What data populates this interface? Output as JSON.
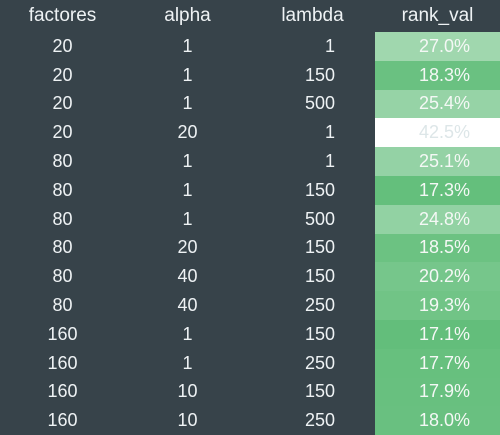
{
  "table": {
    "headers": [
      "factores",
      "alpha",
      "lambda",
      "rank_val"
    ],
    "rows": [
      {
        "factores": "20",
        "alpha": "1",
        "lambda": "1",
        "rank_val": "27.0%",
        "fraction": 0.27
      },
      {
        "factores": "20",
        "alpha": "1",
        "lambda": "150",
        "rank_val": "18.3%",
        "fraction": 0.183
      },
      {
        "factores": "20",
        "alpha": "1",
        "lambda": "500",
        "rank_val": "25.4%",
        "fraction": 0.254
      },
      {
        "factores": "20",
        "alpha": "20",
        "lambda": "1",
        "rank_val": "42.5%",
        "fraction": 0.425
      },
      {
        "factores": "80",
        "alpha": "1",
        "lambda": "1",
        "rank_val": "25.1%",
        "fraction": 0.251
      },
      {
        "factores": "80",
        "alpha": "1",
        "lambda": "150",
        "rank_val": "17.3%",
        "fraction": 0.173
      },
      {
        "factores": "80",
        "alpha": "1",
        "lambda": "500",
        "rank_val": "24.8%",
        "fraction": 0.248
      },
      {
        "factores": "80",
        "alpha": "20",
        "lambda": "150",
        "rank_val": "18.5%",
        "fraction": 0.185
      },
      {
        "factores": "80",
        "alpha": "40",
        "lambda": "150",
        "rank_val": "20.2%",
        "fraction": 0.202
      },
      {
        "factores": "80",
        "alpha": "40",
        "lambda": "250",
        "rank_val": "19.3%",
        "fraction": 0.193
      },
      {
        "factores": "160",
        "alpha": "1",
        "lambda": "150",
        "rank_val": "17.1%",
        "fraction": 0.171
      },
      {
        "factores": "160",
        "alpha": "1",
        "lambda": "250",
        "rank_val": "17.7%",
        "fraction": 0.177
      },
      {
        "factores": "160",
        "alpha": "10",
        "lambda": "150",
        "rank_val": "17.9%",
        "fraction": 0.179
      },
      {
        "factores": "160",
        "alpha": "10",
        "lambda": "250",
        "rank_val": "18.0%",
        "fraction": 0.18
      }
    ]
  },
  "colors": {
    "background": "#37434a",
    "text": "#eef2f4",
    "gradient_low": "#63be7b",
    "gradient_high": "#ffffff"
  }
}
